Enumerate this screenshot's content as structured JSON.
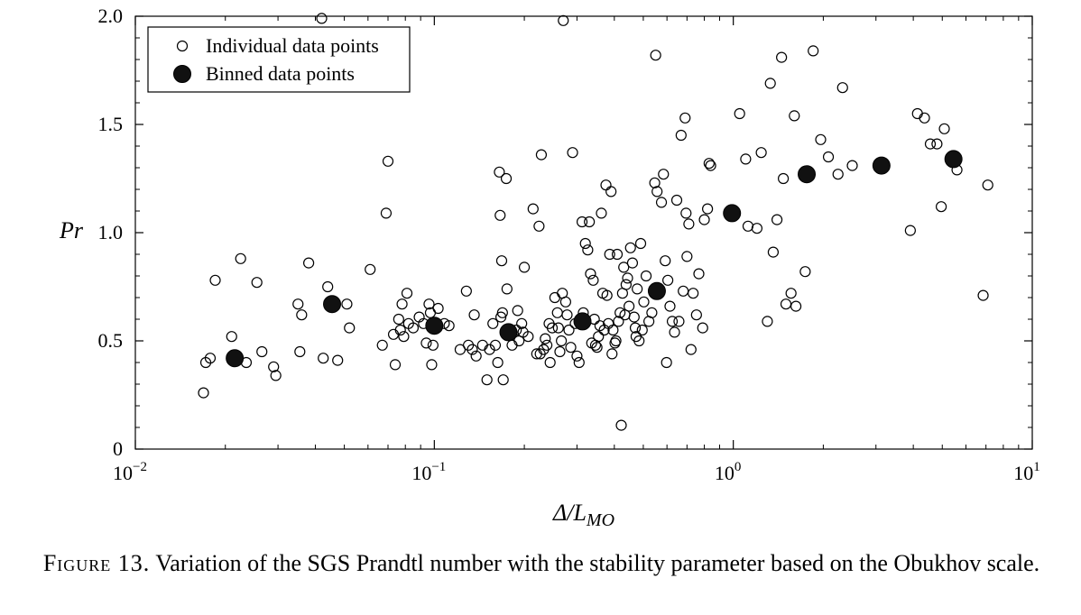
{
  "chart_data": {
    "type": "scatter",
    "title": "",
    "xlabel": "Δ/L",
    "xlabel_subscript": "MO",
    "ylabel": "Pr",
    "xscale": "log",
    "xlim": [
      0.01,
      10
    ],
    "ylim": [
      0,
      2.0
    ],
    "y_ticks": [
      {
        "value": 0,
        "label": "0"
      },
      {
        "value": 0.5,
        "label": "0.5"
      },
      {
        "value": 1.0,
        "label": "1.0"
      },
      {
        "value": 1.5,
        "label": "1.5"
      },
      {
        "value": 2.0,
        "label": "2.0"
      }
    ],
    "x_ticks": [
      {
        "value": 0.01,
        "base": "10",
        "exp": "−2"
      },
      {
        "value": 0.1,
        "base": "10",
        "exp": "−1"
      },
      {
        "value": 1,
        "base": "10",
        "exp": "0"
      },
      {
        "value": 10,
        "base": "10",
        "exp": "1"
      }
    ],
    "grid": false,
    "legend_position": "top-left",
    "series": [
      {
        "name": "Individual data points",
        "marker": "open-circle",
        "points": [
          [
            0.0169,
            0.26
          ],
          [
            0.0172,
            0.4
          ],
          [
            0.0178,
            0.42
          ],
          [
            0.0185,
            0.78
          ],
          [
            0.021,
            0.52
          ],
          [
            0.0225,
            0.88
          ],
          [
            0.0235,
            0.4
          ],
          [
            0.0255,
            0.77
          ],
          [
            0.0265,
            0.45
          ],
          [
            0.029,
            0.38
          ],
          [
            0.0295,
            0.34
          ],
          [
            0.035,
            0.67
          ],
          [
            0.0355,
            0.45
          ],
          [
            0.036,
            0.62
          ],
          [
            0.038,
            0.86
          ],
          [
            0.042,
            1.99
          ],
          [
            0.0425,
            0.42
          ],
          [
            0.044,
            0.75
          ],
          [
            0.0475,
            0.41
          ],
          [
            0.051,
            0.67
          ],
          [
            0.052,
            0.56
          ],
          [
            0.061,
            0.83
          ],
          [
            0.067,
            0.48
          ],
          [
            0.069,
            1.09
          ],
          [
            0.07,
            1.33
          ],
          [
            0.073,
            0.53
          ],
          [
            0.074,
            0.39
          ],
          [
            0.076,
            0.6
          ],
          [
            0.077,
            0.55
          ],
          [
            0.078,
            0.67
          ],
          [
            0.079,
            0.52
          ],
          [
            0.081,
            0.72
          ],
          [
            0.082,
            0.58
          ],
          [
            0.085,
            0.56
          ],
          [
            0.089,
            0.61
          ],
          [
            0.092,
            0.58
          ],
          [
            0.094,
            0.49
          ],
          [
            0.096,
            0.67
          ],
          [
            0.097,
            0.63
          ],
          [
            0.098,
            0.39
          ],
          [
            0.099,
            0.48
          ],
          [
            0.103,
            0.65
          ],
          [
            0.108,
            0.58
          ],
          [
            0.112,
            0.57
          ],
          [
            0.122,
            0.46
          ],
          [
            0.128,
            0.73
          ],
          [
            0.13,
            0.48
          ],
          [
            0.134,
            0.46
          ],
          [
            0.136,
            0.62
          ],
          [
            0.138,
            0.43
          ],
          [
            0.145,
            0.48
          ],
          [
            0.15,
            0.32
          ],
          [
            0.153,
            0.46
          ],
          [
            0.157,
            0.58
          ],
          [
            0.16,
            0.48
          ],
          [
            0.163,
            0.4
          ],
          [
            0.165,
            1.28
          ],
          [
            0.166,
            1.08
          ],
          [
            0.167,
            0.61
          ],
          [
            0.168,
            0.87
          ],
          [
            0.169,
            0.63
          ],
          [
            0.17,
            0.32
          ],
          [
            0.174,
            1.25
          ],
          [
            0.175,
            0.74
          ],
          [
            0.178,
            0.55
          ],
          [
            0.182,
            0.48
          ],
          [
            0.188,
            0.55
          ],
          [
            0.19,
            0.64
          ],
          [
            0.192,
            0.5
          ],
          [
            0.196,
            0.58
          ],
          [
            0.198,
            0.54
          ],
          [
            0.2,
            0.84
          ],
          [
            0.206,
            0.52
          ],
          [
            0.214,
            1.11
          ],
          [
            0.22,
            0.44
          ],
          [
            0.224,
            1.03
          ],
          [
            0.226,
            0.44
          ],
          [
            0.228,
            1.36
          ],
          [
            0.232,
            0.46
          ],
          [
            0.235,
            0.51
          ],
          [
            0.238,
            0.48
          ],
          [
            0.242,
            0.58
          ],
          [
            0.244,
            0.4
          ],
          [
            0.248,
            0.56
          ],
          [
            0.253,
            0.7
          ],
          [
            0.258,
            0.63
          ],
          [
            0.26,
            0.56
          ],
          [
            0.263,
            0.45
          ],
          [
            0.266,
            0.5
          ],
          [
            0.268,
            0.72
          ],
          [
            0.27,
            1.98
          ],
          [
            0.275,
            0.68
          ],
          [
            0.278,
            0.62
          ],
          [
            0.282,
            0.55
          ],
          [
            0.286,
            0.47
          ],
          [
            0.29,
            1.37
          ],
          [
            0.296,
            0.58
          ],
          [
            0.3,
            0.43
          ],
          [
            0.305,
            0.4
          ],
          [
            0.312,
            1.05
          ],
          [
            0.315,
            0.63
          ],
          [
            0.32,
            0.95
          ],
          [
            0.326,
            0.92
          ],
          [
            0.33,
            1.05
          ],
          [
            0.333,
            0.81
          ],
          [
            0.336,
            0.49
          ],
          [
            0.34,
            0.78
          ],
          [
            0.343,
            0.6
          ],
          [
            0.346,
            0.48
          ],
          [
            0.35,
            0.47
          ],
          [
            0.354,
            0.52
          ],
          [
            0.358,
            0.57
          ],
          [
            0.362,
            1.09
          ],
          [
            0.366,
            0.72
          ],
          [
            0.37,
            0.55
          ],
          [
            0.375,
            1.22
          ],
          [
            0.378,
            0.71
          ],
          [
            0.382,
            0.58
          ],
          [
            0.386,
            0.9
          ],
          [
            0.39,
            1.19
          ],
          [
            0.393,
            0.44
          ],
          [
            0.396,
            0.55
          ],
          [
            0.402,
            0.49
          ],
          [
            0.405,
            0.5
          ],
          [
            0.409,
            0.9
          ],
          [
            0.413,
            0.59
          ],
          [
            0.418,
            0.63
          ],
          [
            0.422,
            0.11
          ],
          [
            0.426,
            0.72
          ],
          [
            0.43,
            0.84
          ],
          [
            0.434,
            0.62
          ],
          [
            0.438,
            0.76
          ],
          [
            0.443,
            0.79
          ],
          [
            0.448,
            0.66
          ],
          [
            0.453,
            0.93
          ],
          [
            0.46,
            0.86
          ],
          [
            0.466,
            0.61
          ],
          [
            0.47,
            0.56
          ],
          [
            0.473,
            0.52
          ],
          [
            0.477,
            0.74
          ],
          [
            0.484,
            0.5
          ],
          [
            0.49,
            0.95
          ],
          [
            0.496,
            0.55
          ],
          [
            0.502,
            0.68
          ],
          [
            0.511,
            0.8
          ],
          [
            0.522,
            0.59
          ],
          [
            0.534,
            0.63
          ],
          [
            0.546,
            1.23
          ],
          [
            0.55,
            1.82
          ],
          [
            0.556,
            1.19
          ],
          [
            0.565,
            0.73
          ],
          [
            0.575,
            1.14
          ],
          [
            0.584,
            1.27
          ],
          [
            0.592,
            0.87
          ],
          [
            0.598,
            0.4
          ],
          [
            0.604,
            0.78
          ],
          [
            0.614,
            0.66
          ],
          [
            0.625,
            0.59
          ],
          [
            0.636,
            0.54
          ],
          [
            0.647,
            1.15
          ],
          [
            0.658,
            0.59
          ],
          [
            0.669,
            1.45
          ],
          [
            0.68,
            0.73
          ],
          [
            0.69,
            1.53
          ],
          [
            0.695,
            1.09
          ],
          [
            0.7,
            0.89
          ],
          [
            0.71,
            1.04
          ],
          [
            0.722,
            0.46
          ],
          [
            0.734,
            0.72
          ],
          [
            0.753,
            0.62
          ],
          [
            0.767,
            0.81
          ],
          [
            0.79,
            0.56
          ],
          [
            0.8,
            1.06
          ],
          [
            0.82,
            1.11
          ],
          [
            0.83,
            1.32
          ],
          [
            0.84,
            1.31
          ],
          [
            1.05,
            1.55
          ],
          [
            1.1,
            1.34
          ],
          [
            1.12,
            1.03
          ],
          [
            1.2,
            1.02
          ],
          [
            1.24,
            1.37
          ],
          [
            1.3,
            0.59
          ],
          [
            1.33,
            1.69
          ],
          [
            1.36,
            0.91
          ],
          [
            1.4,
            1.06
          ],
          [
            1.45,
            1.81
          ],
          [
            1.47,
            1.25
          ],
          [
            1.5,
            0.67
          ],
          [
            1.56,
            0.72
          ],
          [
            1.6,
            1.54
          ],
          [
            1.62,
            0.66
          ],
          [
            1.74,
            0.82
          ],
          [
            1.85,
            1.84
          ],
          [
            1.96,
            1.43
          ],
          [
            2.08,
            1.35
          ],
          [
            2.24,
            1.27
          ],
          [
            2.32,
            1.67
          ],
          [
            2.5,
            1.31
          ],
          [
            3.91,
            1.01
          ],
          [
            4.13,
            1.55
          ],
          [
            4.36,
            1.53
          ],
          [
            4.56,
            1.41
          ],
          [
            4.8,
            1.41
          ],
          [
            4.96,
            1.12
          ],
          [
            5.08,
            1.48
          ],
          [
            5.6,
            1.29
          ],
          [
            6.85,
            0.71
          ],
          [
            7.1,
            1.22
          ]
        ]
      },
      {
        "name": "Binned data points",
        "marker": "filled-circle",
        "points": [
          [
            0.0215,
            0.42
          ],
          [
            0.0455,
            0.67
          ],
          [
            0.1,
            0.57
          ],
          [
            0.177,
            0.54
          ],
          [
            0.313,
            0.59
          ],
          [
            0.555,
            0.73
          ],
          [
            0.99,
            1.09
          ],
          [
            1.76,
            1.27
          ],
          [
            3.13,
            1.31
          ],
          [
            5.45,
            1.34
          ]
        ]
      }
    ]
  },
  "caption": {
    "label": "Figure 13.",
    "text": "Variation of the SGS Prandtl number with the stability parameter based on the Obukhov scale."
  }
}
